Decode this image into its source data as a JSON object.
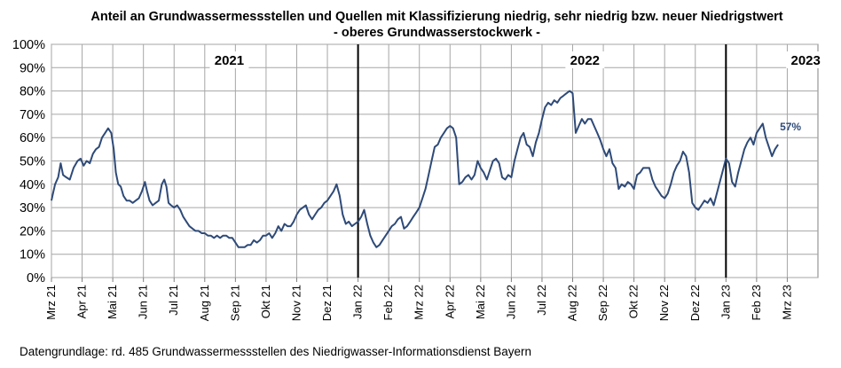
{
  "chart_data": {
    "type": "line",
    "title_line1": "Anteil an Grundwassermessstellen und Quellen mit Klassifizierung niedrig, sehr niedrig bzw. neuer Niedrigstwert",
    "title_line2": "- oberes Grundwasserstockwerk -",
    "footnote": "Datengrundlage:  rd. 485 Grundwassermessstellen  des Niedrigwasser-Informationsdienst  Bayern",
    "y_unit": "%",
    "ylim": [
      0,
      100
    ],
    "y_ticks": [
      "0%",
      "10%",
      "20%",
      "30%",
      "40%",
      "50%",
      "60%",
      "70%",
      "80%",
      "90%",
      "100%"
    ],
    "x_ticks": [
      "Mrz 21",
      "Apr 21",
      "Mai 21",
      "Jun 21",
      "Jul 21",
      "Aug 21",
      "Sep 21",
      "Okt 21",
      "Nov 21",
      "Dez 21",
      "Jan 22",
      "Feb 22",
      "Mrz 22",
      "Apr 22",
      "Mai 22",
      "Jun 22",
      "Jul 22",
      "Aug 22",
      "Sep 22",
      "Okt 22",
      "Nov 22",
      "Dez 22",
      "Jan 23",
      "Feb 23",
      "Mrz 23"
    ],
    "grid": true,
    "line_color": "#2e4a78",
    "year_labels": [
      {
        "text": "2021",
        "month_index": 5.8
      },
      {
        "text": "2022",
        "month_index": 17.4
      },
      {
        "text": "2023",
        "month_index": 24.6
      }
    ],
    "year_separators": [
      10,
      22
    ],
    "end_label": "57%",
    "series": [
      {
        "points": [
          [
            0.0,
            33
          ],
          [
            0.05,
            36
          ],
          [
            0.12,
            40
          ],
          [
            0.22,
            43
          ],
          [
            0.3,
            49
          ],
          [
            0.38,
            44
          ],
          [
            0.48,
            43
          ],
          [
            0.6,
            42
          ],
          [
            0.72,
            47
          ],
          [
            0.85,
            50
          ],
          [
            0.95,
            51
          ],
          [
            1.05,
            48
          ],
          [
            1.15,
            50
          ],
          [
            1.25,
            49
          ],
          [
            1.35,
            53
          ],
          [
            1.45,
            55
          ],
          [
            1.55,
            56
          ],
          [
            1.65,
            60
          ],
          [
            1.75,
            62
          ],
          [
            1.85,
            64
          ],
          [
            1.95,
            62
          ],
          [
            2.03,
            55
          ],
          [
            2.1,
            45
          ],
          [
            2.18,
            40
          ],
          [
            2.26,
            39
          ],
          [
            2.35,
            35
          ],
          [
            2.45,
            33
          ],
          [
            2.55,
            33
          ],
          [
            2.65,
            32
          ],
          [
            2.75,
            33
          ],
          [
            2.85,
            34
          ],
          [
            2.95,
            37
          ],
          [
            3.05,
            41
          ],
          [
            3.12,
            37
          ],
          [
            3.2,
            33
          ],
          [
            3.3,
            31
          ],
          [
            3.4,
            32
          ],
          [
            3.5,
            33
          ],
          [
            3.6,
            40
          ],
          [
            3.68,
            42
          ],
          [
            3.75,
            39
          ],
          [
            3.82,
            32
          ],
          [
            3.9,
            31
          ],
          [
            4.0,
            30
          ],
          [
            4.1,
            31
          ],
          [
            4.2,
            29
          ],
          [
            4.3,
            26
          ],
          [
            4.4,
            24
          ],
          [
            4.5,
            22
          ],
          [
            4.6,
            21
          ],
          [
            4.7,
            20
          ],
          [
            4.8,
            20
          ],
          [
            4.9,
            19
          ],
          [
            5.0,
            19
          ],
          [
            5.1,
            18
          ],
          [
            5.2,
            18
          ],
          [
            5.3,
            17
          ],
          [
            5.4,
            18
          ],
          [
            5.5,
            17
          ],
          [
            5.6,
            18
          ],
          [
            5.7,
            18
          ],
          [
            5.8,
            17
          ],
          [
            5.9,
            17
          ],
          [
            6.0,
            15
          ],
          [
            6.1,
            13
          ],
          [
            6.2,
            13
          ],
          [
            6.3,
            13
          ],
          [
            6.4,
            14
          ],
          [
            6.5,
            14
          ],
          [
            6.6,
            16
          ],
          [
            6.7,
            15
          ],
          [
            6.8,
            16
          ],
          [
            6.9,
            18
          ],
          [
            7.0,
            18
          ],
          [
            7.1,
            19
          ],
          [
            7.2,
            17
          ],
          [
            7.3,
            19
          ],
          [
            7.4,
            22
          ],
          [
            7.5,
            20
          ],
          [
            7.6,
            23
          ],
          [
            7.7,
            22
          ],
          [
            7.8,
            22
          ],
          [
            7.9,
            24
          ],
          [
            8.0,
            27
          ],
          [
            8.1,
            29
          ],
          [
            8.2,
            30
          ],
          [
            8.3,
            31
          ],
          [
            8.4,
            27
          ],
          [
            8.5,
            25
          ],
          [
            8.6,
            27
          ],
          [
            8.7,
            29
          ],
          [
            8.8,
            30
          ],
          [
            8.9,
            32
          ],
          [
            9.0,
            33
          ],
          [
            9.1,
            35
          ],
          [
            9.2,
            37
          ],
          [
            9.3,
            40
          ],
          [
            9.4,
            35
          ],
          [
            9.5,
            27
          ],
          [
            9.6,
            23
          ],
          [
            9.7,
            24
          ],
          [
            9.8,
            22
          ],
          [
            9.9,
            23
          ],
          [
            10.0,
            24
          ],
          [
            10.1,
            26
          ],
          [
            10.2,
            29
          ],
          [
            10.3,
            23
          ],
          [
            10.4,
            18
          ],
          [
            10.5,
            15
          ],
          [
            10.6,
            13
          ],
          [
            10.7,
            14
          ],
          [
            10.8,
            16
          ],
          [
            10.9,
            18
          ],
          [
            11.0,
            20
          ],
          [
            11.1,
            22
          ],
          [
            11.2,
            23
          ],
          [
            11.3,
            25
          ],
          [
            11.4,
            26
          ],
          [
            11.5,
            21
          ],
          [
            11.6,
            22
          ],
          [
            11.7,
            24
          ],
          [
            11.8,
            26
          ],
          [
            11.9,
            28
          ],
          [
            12.0,
            30
          ],
          [
            12.1,
            34
          ],
          [
            12.2,
            38
          ],
          [
            12.3,
            44
          ],
          [
            12.4,
            50
          ],
          [
            12.5,
            56
          ],
          [
            12.6,
            57
          ],
          [
            12.7,
            60
          ],
          [
            12.8,
            62
          ],
          [
            12.9,
            64
          ],
          [
            13.0,
            65
          ],
          [
            13.1,
            64
          ],
          [
            13.2,
            60
          ],
          [
            13.3,
            40
          ],
          [
            13.4,
            41
          ],
          [
            13.5,
            43
          ],
          [
            13.6,
            44
          ],
          [
            13.7,
            42
          ],
          [
            13.8,
            44
          ],
          [
            13.9,
            50
          ],
          [
            14.0,
            47
          ],
          [
            14.1,
            45
          ],
          [
            14.2,
            42
          ],
          [
            14.3,
            46
          ],
          [
            14.4,
            50
          ],
          [
            14.5,
            51
          ],
          [
            14.6,
            49
          ],
          [
            14.7,
            43
          ],
          [
            14.8,
            42
          ],
          [
            14.9,
            44
          ],
          [
            15.0,
            43
          ],
          [
            15.1,
            50
          ],
          [
            15.2,
            55
          ],
          [
            15.3,
            60
          ],
          [
            15.4,
            62
          ],
          [
            15.5,
            57
          ],
          [
            15.6,
            56
          ],
          [
            15.7,
            52
          ],
          [
            15.8,
            58
          ],
          [
            15.9,
            62
          ],
          [
            16.0,
            68
          ],
          [
            16.1,
            73
          ],
          [
            16.2,
            75
          ],
          [
            16.3,
            74
          ],
          [
            16.4,
            76
          ],
          [
            16.5,
            75
          ],
          [
            16.6,
            77
          ],
          [
            16.7,
            78
          ],
          [
            16.8,
            79
          ],
          [
            16.9,
            80
          ],
          [
            17.0,
            79
          ],
          [
            17.1,
            62
          ],
          [
            17.2,
            65
          ],
          [
            17.3,
            68
          ],
          [
            17.4,
            66
          ],
          [
            17.5,
            68
          ],
          [
            17.6,
            68
          ],
          [
            17.7,
            65
          ],
          [
            17.8,
            62
          ],
          [
            17.9,
            59
          ],
          [
            18.0,
            55
          ],
          [
            18.1,
            52
          ],
          [
            18.2,
            55
          ],
          [
            18.3,
            49
          ],
          [
            18.4,
            47
          ],
          [
            18.5,
            38
          ],
          [
            18.6,
            40
          ],
          [
            18.7,
            39
          ],
          [
            18.8,
            41
          ],
          [
            18.9,
            40
          ],
          [
            19.0,
            38
          ],
          [
            19.1,
            44
          ],
          [
            19.2,
            45
          ],
          [
            19.3,
            47
          ],
          [
            19.4,
            47
          ],
          [
            19.5,
            47
          ],
          [
            19.6,
            42
          ],
          [
            19.7,
            39
          ],
          [
            19.8,
            37
          ],
          [
            19.9,
            35
          ],
          [
            20.0,
            34
          ],
          [
            20.1,
            36
          ],
          [
            20.2,
            40
          ],
          [
            20.3,
            45
          ],
          [
            20.4,
            48
          ],
          [
            20.5,
            50
          ],
          [
            20.6,
            54
          ],
          [
            20.7,
            52
          ],
          [
            20.8,
            45
          ],
          [
            20.9,
            32
          ],
          [
            21.0,
            30
          ],
          [
            21.1,
            29
          ],
          [
            21.2,
            31
          ],
          [
            21.3,
            33
          ],
          [
            21.4,
            32
          ],
          [
            21.5,
            34
          ],
          [
            21.6,
            31
          ],
          [
            21.7,
            36
          ],
          [
            21.8,
            41
          ],
          [
            21.9,
            46
          ],
          [
            22.0,
            51
          ],
          [
            22.1,
            49
          ],
          [
            22.2,
            41
          ],
          [
            22.3,
            39
          ],
          [
            22.4,
            45
          ],
          [
            22.5,
            50
          ],
          [
            22.6,
            55
          ],
          [
            22.7,
            58
          ],
          [
            22.8,
            60
          ],
          [
            22.9,
            57
          ],
          [
            23.0,
            62
          ],
          [
            23.1,
            64
          ],
          [
            23.2,
            66
          ],
          [
            23.3,
            60
          ],
          [
            23.4,
            56
          ],
          [
            23.5,
            52
          ],
          [
            23.6,
            55
          ],
          [
            23.7,
            57
          ]
        ]
      }
    ]
  }
}
